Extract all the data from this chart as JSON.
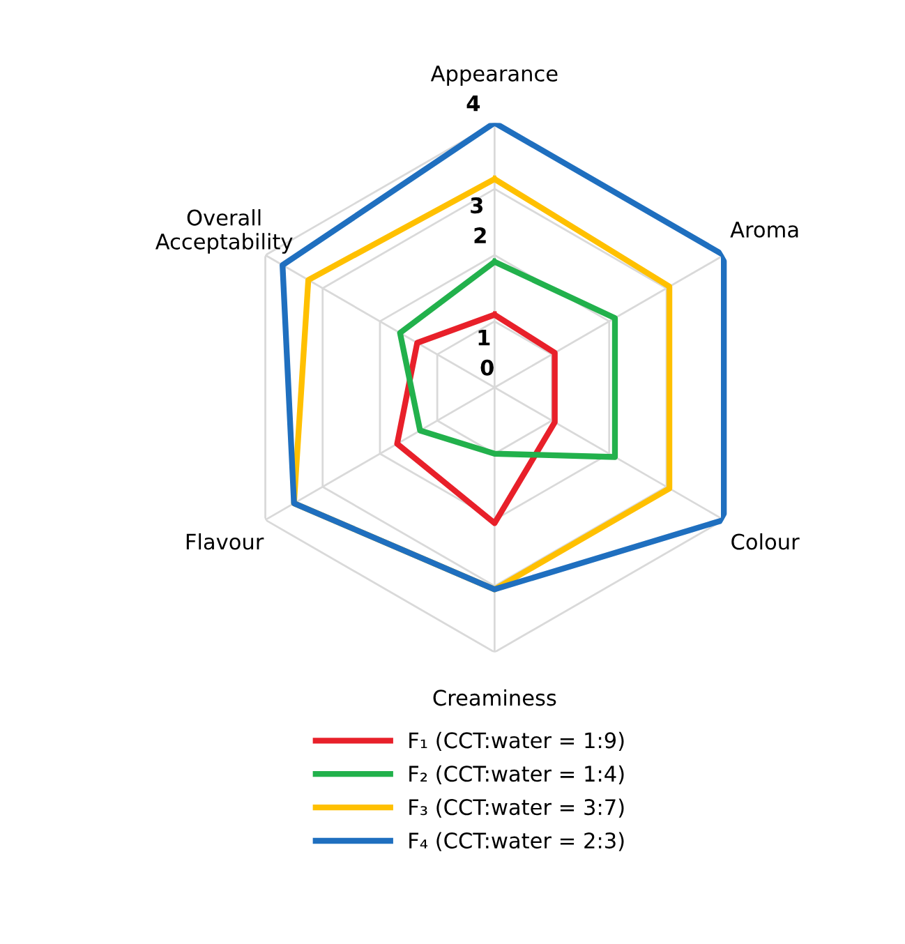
{
  "chart_data": {
    "type": "radar",
    "categories": [
      "Appearance",
      "Aroma",
      "Colour",
      "Creaminess",
      "Flavour",
      "Overall\nAcceptability"
    ],
    "ylim": [
      0,
      4
    ],
    "yticks": [
      0,
      1,
      2,
      3,
      4
    ],
    "grid": true,
    "legend": "bottom",
    "marker": "none",
    "line_style": "solid",
    "series": [
      {
        "name": "F₁ (CCT:water = 1:9)",
        "color": "#e8202a",
        "values": [
          1.1,
          1.05,
          1.05,
          2.05,
          1.7,
          1.35
        ]
      },
      {
        "name": "F₂ (CCT:water = 1:4)",
        "color": "#22b14c",
        "values": [
          1.9,
          2.1,
          2.1,
          1.0,
          1.3,
          1.65
        ]
      },
      {
        "name": "F₃ (CCT:water = 3:7)",
        "color": "#ffc000",
        "values": [
          3.15,
          3.05,
          3.05,
          3.05,
          3.5,
          3.25
        ]
      },
      {
        "name": "F₄ (CCT:water = 2:3)",
        "color": "#1f6fbf",
        "values": [
          4.0,
          4.0,
          4.0,
          3.05,
          3.5,
          3.7
        ]
      }
    ]
  }
}
